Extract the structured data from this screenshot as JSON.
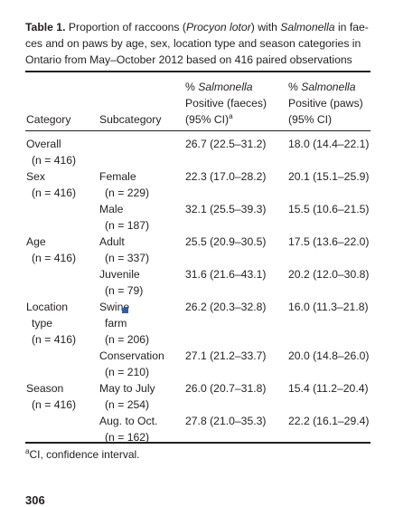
{
  "caption": {
    "label": "Table 1.",
    "text_before_species": "Proportion of raccoons (",
    "species": "Procyon lotor",
    "text_between": ") with ",
    "genus": "Salmonella",
    "text_after_genus": " in fae-",
    "line2": "ces and on paws by age, sex, location type and season categories in",
    "line3": "Ontario from May–October 2012 based on 416 paired observations"
  },
  "headers": {
    "category": "Category",
    "subcategory": "Subcategory",
    "faeces_line1_prefix": "% ",
    "faeces_line1_italic": "Salmonella",
    "faeces_line2": "Positive (faeces)",
    "faeces_line3": "(95% CI)",
    "faeces_line3_sup": "a",
    "paws_line1_prefix": "% ",
    "paws_line1_italic": "Salmonella",
    "paws_line2": "Positive (paws)",
    "paws_line3": "(95% CI)"
  },
  "rows": {
    "overall": {
      "category": "Overall",
      "category_n": "(n = 416)",
      "faeces": "26.7 (22.5–31.2)",
      "paws": "18.0 (14.4–22.1)"
    },
    "female": {
      "category": "Sex",
      "category_n": "(n = 416)",
      "subcategory": "Female",
      "subcategory_n": "(n = 229)",
      "faeces": "22.3 (17.0–28.2)",
      "paws": "20.1 (15.1–25.9)"
    },
    "male": {
      "subcategory": "Male",
      "subcategory_n": "(n = 187)",
      "faeces": "32.1 (25.5–39.3)",
      "paws": "15.5 (10.6–21.5)"
    },
    "adult": {
      "category": "Age",
      "category_n": "(n = 416)",
      "subcategory": "Adult",
      "subcategory_n": "(n = 337)",
      "faeces": "25.5 (20.9–30.5)",
      "paws": "17.5 (13.6–22.0)"
    },
    "juvenile": {
      "subcategory": "Juvenile",
      "subcategory_n": "(n = 79)",
      "faeces": "31.6 (21.6–43.1)",
      "paws": "20.2 (12.0–30.8)"
    },
    "swine": {
      "category": "Location",
      "category_line2": "type",
      "category_n": "(n = 416)",
      "subcategory": "Swine",
      "subcategory_line2": "farm",
      "subcategory_n": "(n = 206)",
      "faeces": "26.2 (20.3–32.8)",
      "paws": "16.0 (11.3–21.8)"
    },
    "conservation": {
      "subcategory": "Conservation",
      "subcategory_n": "(n = 210)",
      "faeces": "27.1 (21.2–33.7)",
      "paws": "20.0 (14.8–26.0)"
    },
    "mayjuly": {
      "category": "Season",
      "category_n": "(n = 416)",
      "subcategory": "May to July",
      "subcategory_n": "(n = 254)",
      "faeces": "26.0 (20.7–31.8)",
      "paws": "15.4 (11.2–20.4)"
    },
    "augoct": {
      "subcategory": "Aug. to Oct.",
      "subcategory_n": "(n = 162)",
      "faeces": "27.8 (21.0–35.3)",
      "paws": "22.2 (16.1–29.4)"
    }
  },
  "footnote": {
    "marker": "a",
    "text": "CI, confidence interval."
  },
  "page_number": "306"
}
